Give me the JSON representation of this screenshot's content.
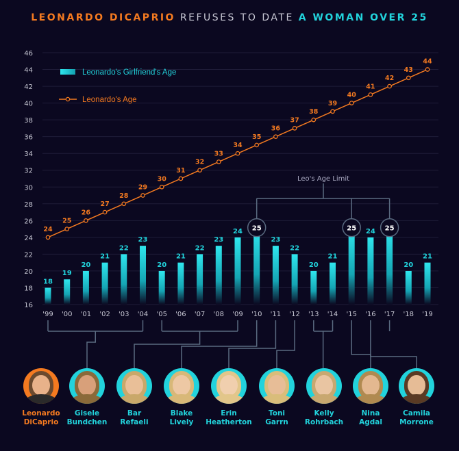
{
  "title": {
    "part1": "LEONARDO DICAPRIO",
    "part2": " REFUSES TO DATE ",
    "part3": "A WOMAN OVER 25"
  },
  "colors": {
    "background": "#0b0820",
    "orange": "#f47a20",
    "cyan": "#22d3dc",
    "title_white": "#c8c8d4",
    "axis_text": "#c8c8d4",
    "connector": "#5a6a80",
    "grid": "#1f1c38"
  },
  "chart_data": {
    "type": "bar",
    "categories": [
      "'99",
      "'00",
      "'01",
      "'02",
      "'03",
      "'04",
      "'05",
      "'06",
      "'07",
      "'08",
      "'09",
      "'10",
      "'11",
      "'12",
      "'13",
      "'14",
      "'15",
      "'16",
      "'17",
      "'18",
      "'19"
    ],
    "series": [
      {
        "name": "Leonardo's Girlfriend's Age",
        "type": "bar",
        "values": [
          18,
          19,
          20,
          21,
          22,
          23,
          20,
          21,
          22,
          23,
          24,
          25,
          23,
          22,
          20,
          21,
          25,
          24,
          25,
          20,
          21
        ]
      },
      {
        "name": "Leonardo's Age",
        "type": "line",
        "values": [
          24,
          25,
          26,
          27,
          28,
          29,
          30,
          31,
          32,
          33,
          34,
          35,
          36,
          37,
          38,
          39,
          40,
          41,
          42,
          43,
          44
        ]
      }
    ],
    "y_ticks": [
      16,
      18,
      20,
      22,
      24,
      26,
      28,
      30,
      32,
      34,
      36,
      38,
      40,
      42,
      44,
      46
    ],
    "ylim": [
      16,
      46
    ],
    "grid": true,
    "legend_position": "top-left",
    "annotation": "Leo's Age Limit",
    "limit_marked_indices": [
      11,
      16,
      18
    ]
  },
  "people": [
    {
      "name": "Leonardo\nDiCaprio",
      "is_leo": true
    },
    {
      "name": "Gisele\nBundchen",
      "years_index": [
        0,
        5
      ]
    },
    {
      "name": "Bar\nRefaeli",
      "years_index": [
        6,
        10
      ]
    },
    {
      "name": "Blake\nLively",
      "years_index": [
        11
      ]
    },
    {
      "name": "Erin\nHeatherton",
      "years_index": [
        12
      ]
    },
    {
      "name": "Toni\nGarrn",
      "years_index": [
        13
      ]
    },
    {
      "name": "Kelly\nRohrbach",
      "years_index": [
        14,
        15
      ]
    },
    {
      "name": "Nina\nAgdal",
      "years_index": [
        16
      ]
    },
    {
      "name": "Camila\nMorrone",
      "years_index": [
        17,
        18
      ]
    }
  ]
}
